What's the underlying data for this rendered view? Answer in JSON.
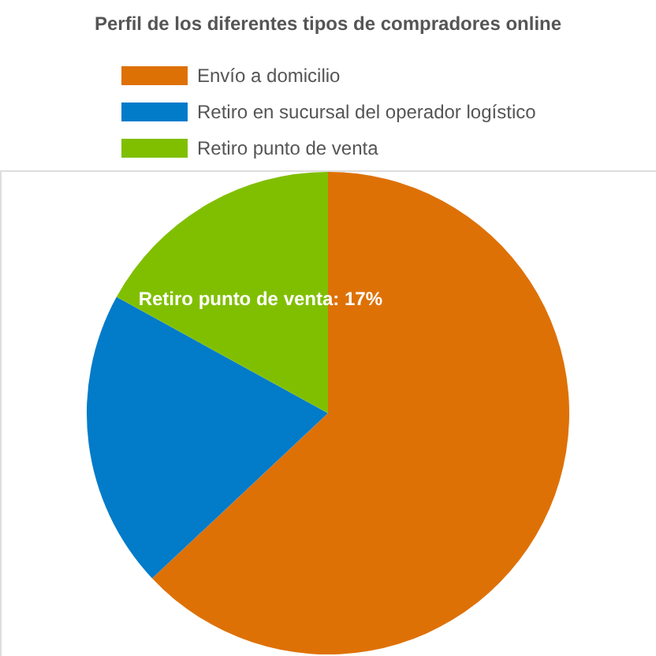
{
  "chart_data": {
    "type": "pie",
    "title": "Perfil de los diferentes tipos de compradores online",
    "categories": [
      "Envío a domicilio",
      "Retiro en sucursal del operador logístico",
      "Retiro punto de venta"
    ],
    "values": [
      63,
      20,
      17
    ],
    "colors": [
      "#de7106",
      "#027bc9",
      "#80bf00"
    ],
    "legend": "top",
    "value_labels": [
      null,
      null,
      "Retiro punto de venta: 17%"
    ]
  }
}
